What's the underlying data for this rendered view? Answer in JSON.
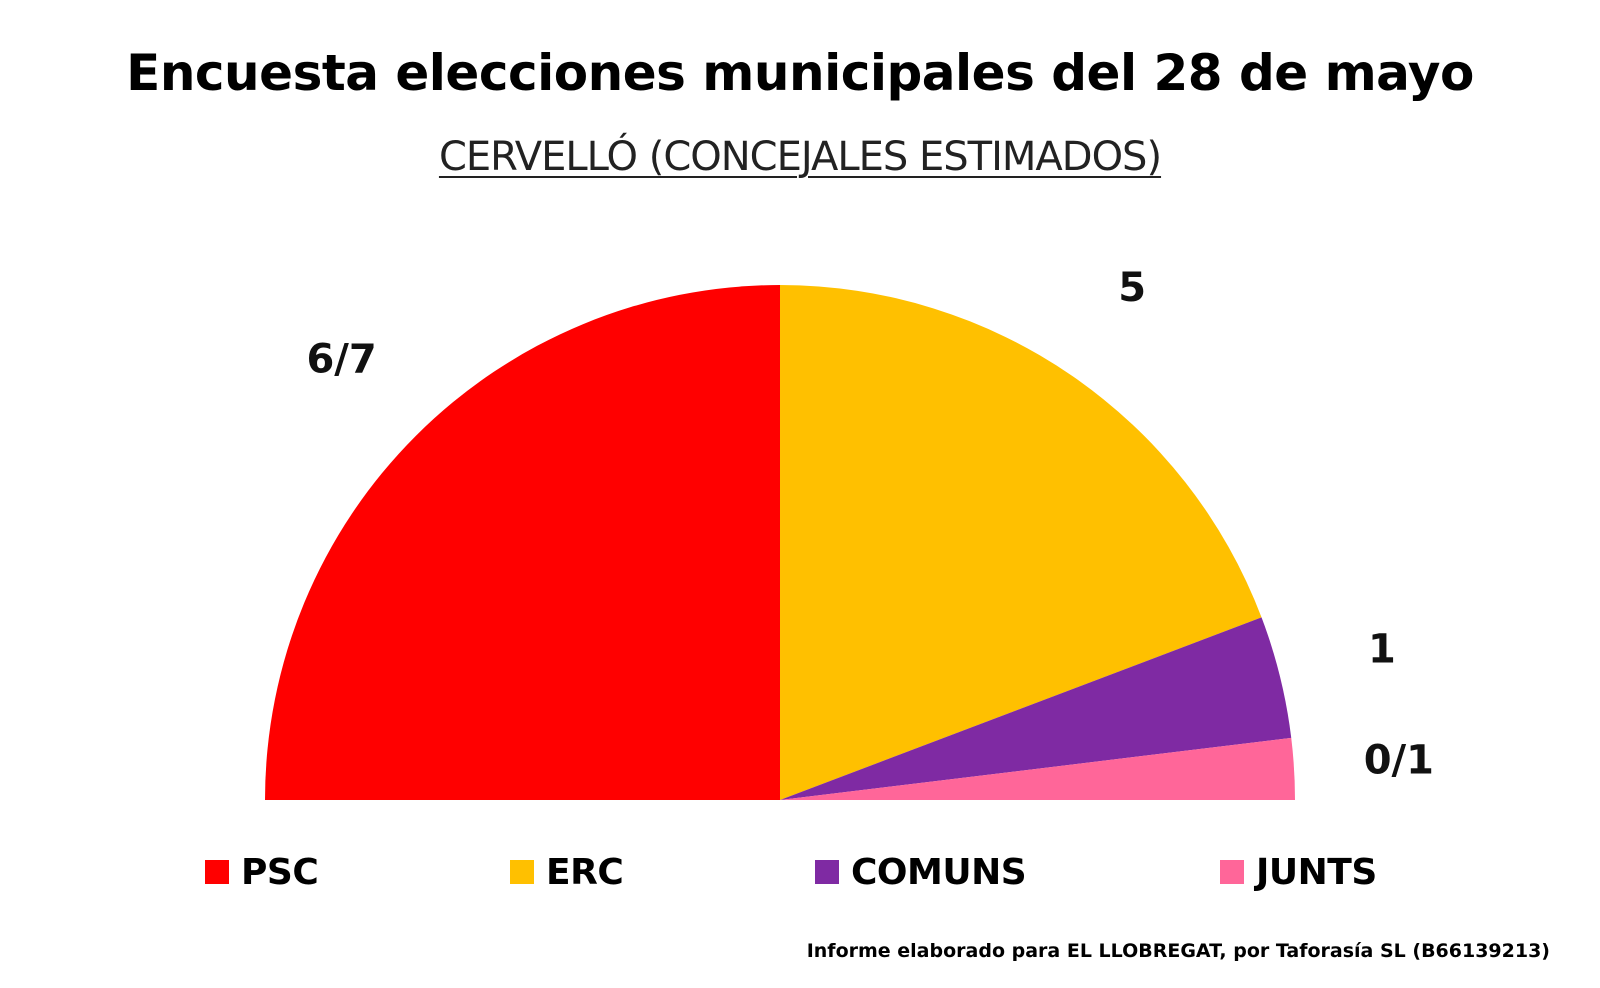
{
  "chart_data": {
    "type": "pie",
    "subtype": "half-donut",
    "title": "Encuesta elecciones municipales del 28 de mayo",
    "subtitle": "CERVELLÓ (CONCEJALES ESTIMADOS)",
    "series": [
      {
        "name": "PSC",
        "label": "6/7",
        "value": 6.5,
        "color": "#ff0000"
      },
      {
        "name": "ERC",
        "label": "5",
        "value": 5,
        "color": "#ffc000"
      },
      {
        "name": "COMUNS",
        "label": "1",
        "value": 1,
        "color": "#7f2aa3"
      },
      {
        "name": "JUNTS",
        "label": "0/1",
        "value": 0.5,
        "color": "#ff6699"
      }
    ],
    "legend_position": "bottom"
  },
  "footer": "Informe elaborado para EL LLOBREGAT, por Taforasía SL (B66139213)"
}
